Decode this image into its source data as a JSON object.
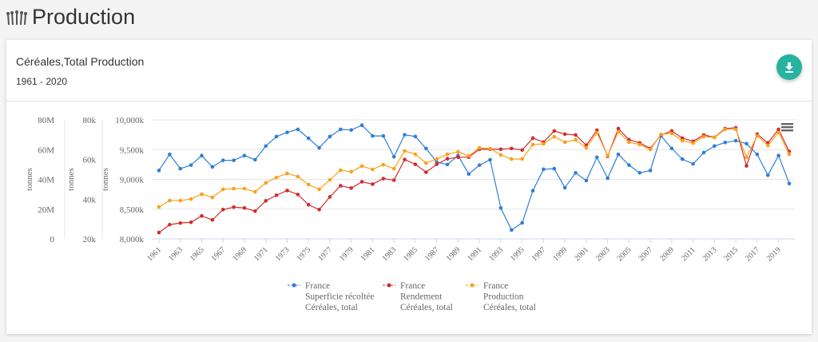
{
  "page": {
    "title": "Production",
    "icon": "wheat-icon"
  },
  "card": {
    "title": "Céréales,Total Production",
    "subtitle": "1961 - 2020",
    "download_icon": "download-icon",
    "menu_icon": "hamburger-menu-icon",
    "accent": "#26b3a0"
  },
  "chart_data": {
    "type": "line",
    "x": [
      1961,
      1962,
      1963,
      1964,
      1965,
      1966,
      1967,
      1968,
      1969,
      1970,
      1971,
      1972,
      1973,
      1974,
      1975,
      1976,
      1977,
      1978,
      1979,
      1980,
      1981,
      1982,
      1983,
      1984,
      1985,
      1986,
      1987,
      1988,
      1989,
      1990,
      1991,
      1992,
      1993,
      1994,
      1995,
      1996,
      1997,
      1998,
      1999,
      2000,
      2001,
      2002,
      2003,
      2004,
      2005,
      2006,
      2007,
      2008,
      2009,
      2010,
      2011,
      2012,
      2013,
      2014,
      2015,
      2016,
      2017,
      2018,
      2019,
      2020
    ],
    "x_tick_labels": [
      "1961",
      "1963",
      "1965",
      "1967",
      "1969",
      "1971",
      "1973",
      "1975",
      "1977",
      "1979",
      "1981",
      "1983",
      "1985",
      "1987",
      "1989",
      "1991",
      "1993",
      "1995",
      "1997",
      "1999",
      "2001",
      "2003",
      "2005",
      "2007",
      "2009",
      "2011",
      "2013",
      "2015",
      "2017",
      "2019"
    ],
    "axes": [
      {
        "id": "production",
        "label": "tonnes",
        "range": [
          0,
          80000000
        ],
        "ticks": [
          "0",
          "20M",
          "40M",
          "60M",
          "80M"
        ],
        "tick_values": [
          0,
          20000000,
          40000000,
          60000000,
          80000000
        ]
      },
      {
        "id": "yield",
        "label": "tonnes",
        "range": [
          20000,
          80000
        ],
        "ticks": [
          "20k",
          "40k",
          "60k",
          "80k"
        ],
        "tick_values": [
          20000,
          40000,
          60000,
          80000
        ]
      },
      {
        "id": "area",
        "label": "tonnes",
        "range": [
          8000000,
          10000000
        ],
        "ticks": [
          "8,000k",
          "8,500k",
          "9,000k",
          "9,500k",
          "10,000k"
        ],
        "tick_values": [
          8000000,
          8500000,
          9000000,
          9500000,
          10000000
        ]
      }
    ],
    "grid": true,
    "legend_position": "bottom",
    "series": [
      {
        "name_lines": [
          "France",
          "Superficie récoltée",
          "Céréales, total"
        ],
        "axis": 2,
        "color": "#2f7ed8",
        "values": [
          9150,
          9420,
          9180,
          9240,
          9400,
          9210,
          9320,
          9320,
          9400,
          9330,
          9560,
          9720,
          9790,
          9840,
          9690,
          9530,
          9720,
          9840,
          9830,
          9910,
          9730,
          9730,
          9380,
          9750,
          9720,
          9520,
          9290,
          9250,
          9400,
          9090,
          9240,
          9330,
          8520,
          8150,
          8270,
          8810,
          9170,
          9180,
          8860,
          9110,
          8980,
          9370,
          9020,
          9420,
          9240,
          9110,
          9150,
          9730,
          9520,
          9340,
          9260,
          9450,
          9560,
          9620,
          9650,
          9600,
          9420,
          9070,
          9400,
          8930
        ],
        "unit_scale": 1000
      },
      {
        "name_lines": [
          "France",
          "Rendement",
          "Céréales, total"
        ],
        "axis": 1,
        "color": "#d42c2c",
        "values": [
          23.2,
          27.2,
          28,
          28.4,
          31.6,
          29.6,
          34.8,
          36,
          35.6,
          34,
          39.2,
          42,
          44.4,
          42.4,
          37.2,
          34.8,
          41.2,
          46.8,
          45.6,
          48.8,
          47.6,
          50.4,
          49.6,
          60,
          57.6,
          53.6,
          57.6,
          60.4,
          61.2,
          61.2,
          65.2,
          65.2,
          65.2,
          65.6,
          64.8,
          70.8,
          68.8,
          74.4,
          72.8,
          72.4,
          67.2,
          74.8,
          61.6,
          75.6,
          70,
          68.4,
          65.6,
          72.4,
          74.4,
          70.8,
          69.2,
          72.4,
          71.2,
          75.6,
          76,
          56.8,
          72.8,
          68.4,
          75.2,
          64
        ],
        "unit_scale": 1000
      },
      {
        "name_lines": [
          "France",
          "Production",
          "Céréales, total"
        ],
        "axis": 0,
        "color": "#f9a11b",
        "values": [
          21.5,
          25.8,
          25.8,
          26.8,
          30.1,
          27.9,
          33.3,
          33.8,
          33.8,
          31.7,
          37.6,
          41.3,
          44,
          41.9,
          36.5,
          33.3,
          39.7,
          46.2,
          45.1,
          48.9,
          46.7,
          49.9,
          47.2,
          59.1,
          56.9,
          51,
          53.7,
          56.9,
          58.5,
          55.8,
          61.2,
          60.7,
          56.4,
          53.7,
          53.7,
          63.4,
          63.9,
          68.7,
          65,
          66.6,
          61.2,
          71.4,
          55.8,
          72,
          65,
          63.4,
          60.1,
          70.3,
          70.9,
          66,
          64.4,
          68.7,
          68.2,
          73.6,
          73.6,
          54.8,
          69.3,
          62.8,
          71.4,
          56.9
        ],
        "unit_scale": 1000000
      }
    ]
  }
}
